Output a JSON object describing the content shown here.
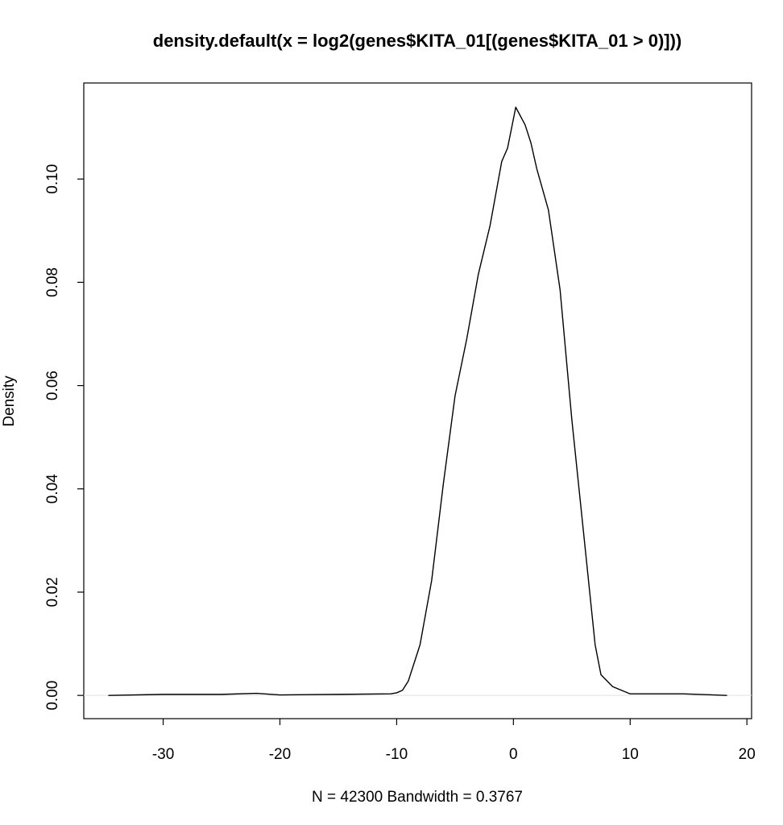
{
  "chart_data": {
    "type": "line",
    "title": "density.default(x = log2(genes$KITA_01[(genes$KITA_01 > 0)]))",
    "x_label": "N = 42300   Bandwidth = 0.3767",
    "y_label": "Density",
    "x": [
      -34.7,
      -30,
      -25,
      -22,
      -20,
      -15,
      -10.5,
      -10,
      -9.5,
      -9,
      -8,
      -7,
      -6,
      -5,
      -4,
      -3,
      -2,
      -1,
      -0.5,
      0.2,
      1,
      1.5,
      2,
      3,
      4,
      5,
      6,
      7,
      7.5,
      8.5,
      10,
      14.5,
      18.3
    ],
    "values": [
      0,
      0.0002,
      0.0002,
      0.0004,
      0.0001,
      0.0002,
      0.0003,
      0.0005,
      0.001,
      0.0028,
      0.0098,
      0.0223,
      0.041,
      0.058,
      0.069,
      0.0816,
      0.091,
      0.1034,
      0.106,
      0.1139,
      0.1105,
      0.107,
      0.102,
      0.094,
      0.0785,
      0.0535,
      0.0317,
      0.0098,
      0.004,
      0.0017,
      0.0003,
      0.0003,
      0
    ],
    "color": "#000000",
    "xlim": [
      -36.8,
      20.4
    ],
    "ylim": [
      -0.0045,
      0.1186
    ],
    "xticks": [
      -30,
      -20,
      -10,
      0,
      10,
      20
    ],
    "yticks": [
      {
        "value": 0,
        "label": "0.00"
      },
      {
        "value": 0.02,
        "label": "0.02"
      },
      {
        "value": 0.04,
        "label": "0.04"
      },
      {
        "value": 0.06,
        "label": "0.06"
      },
      {
        "value": 0.08,
        "label": "0.08"
      },
      {
        "value": 0.1,
        "label": "0.10"
      }
    ]
  }
}
